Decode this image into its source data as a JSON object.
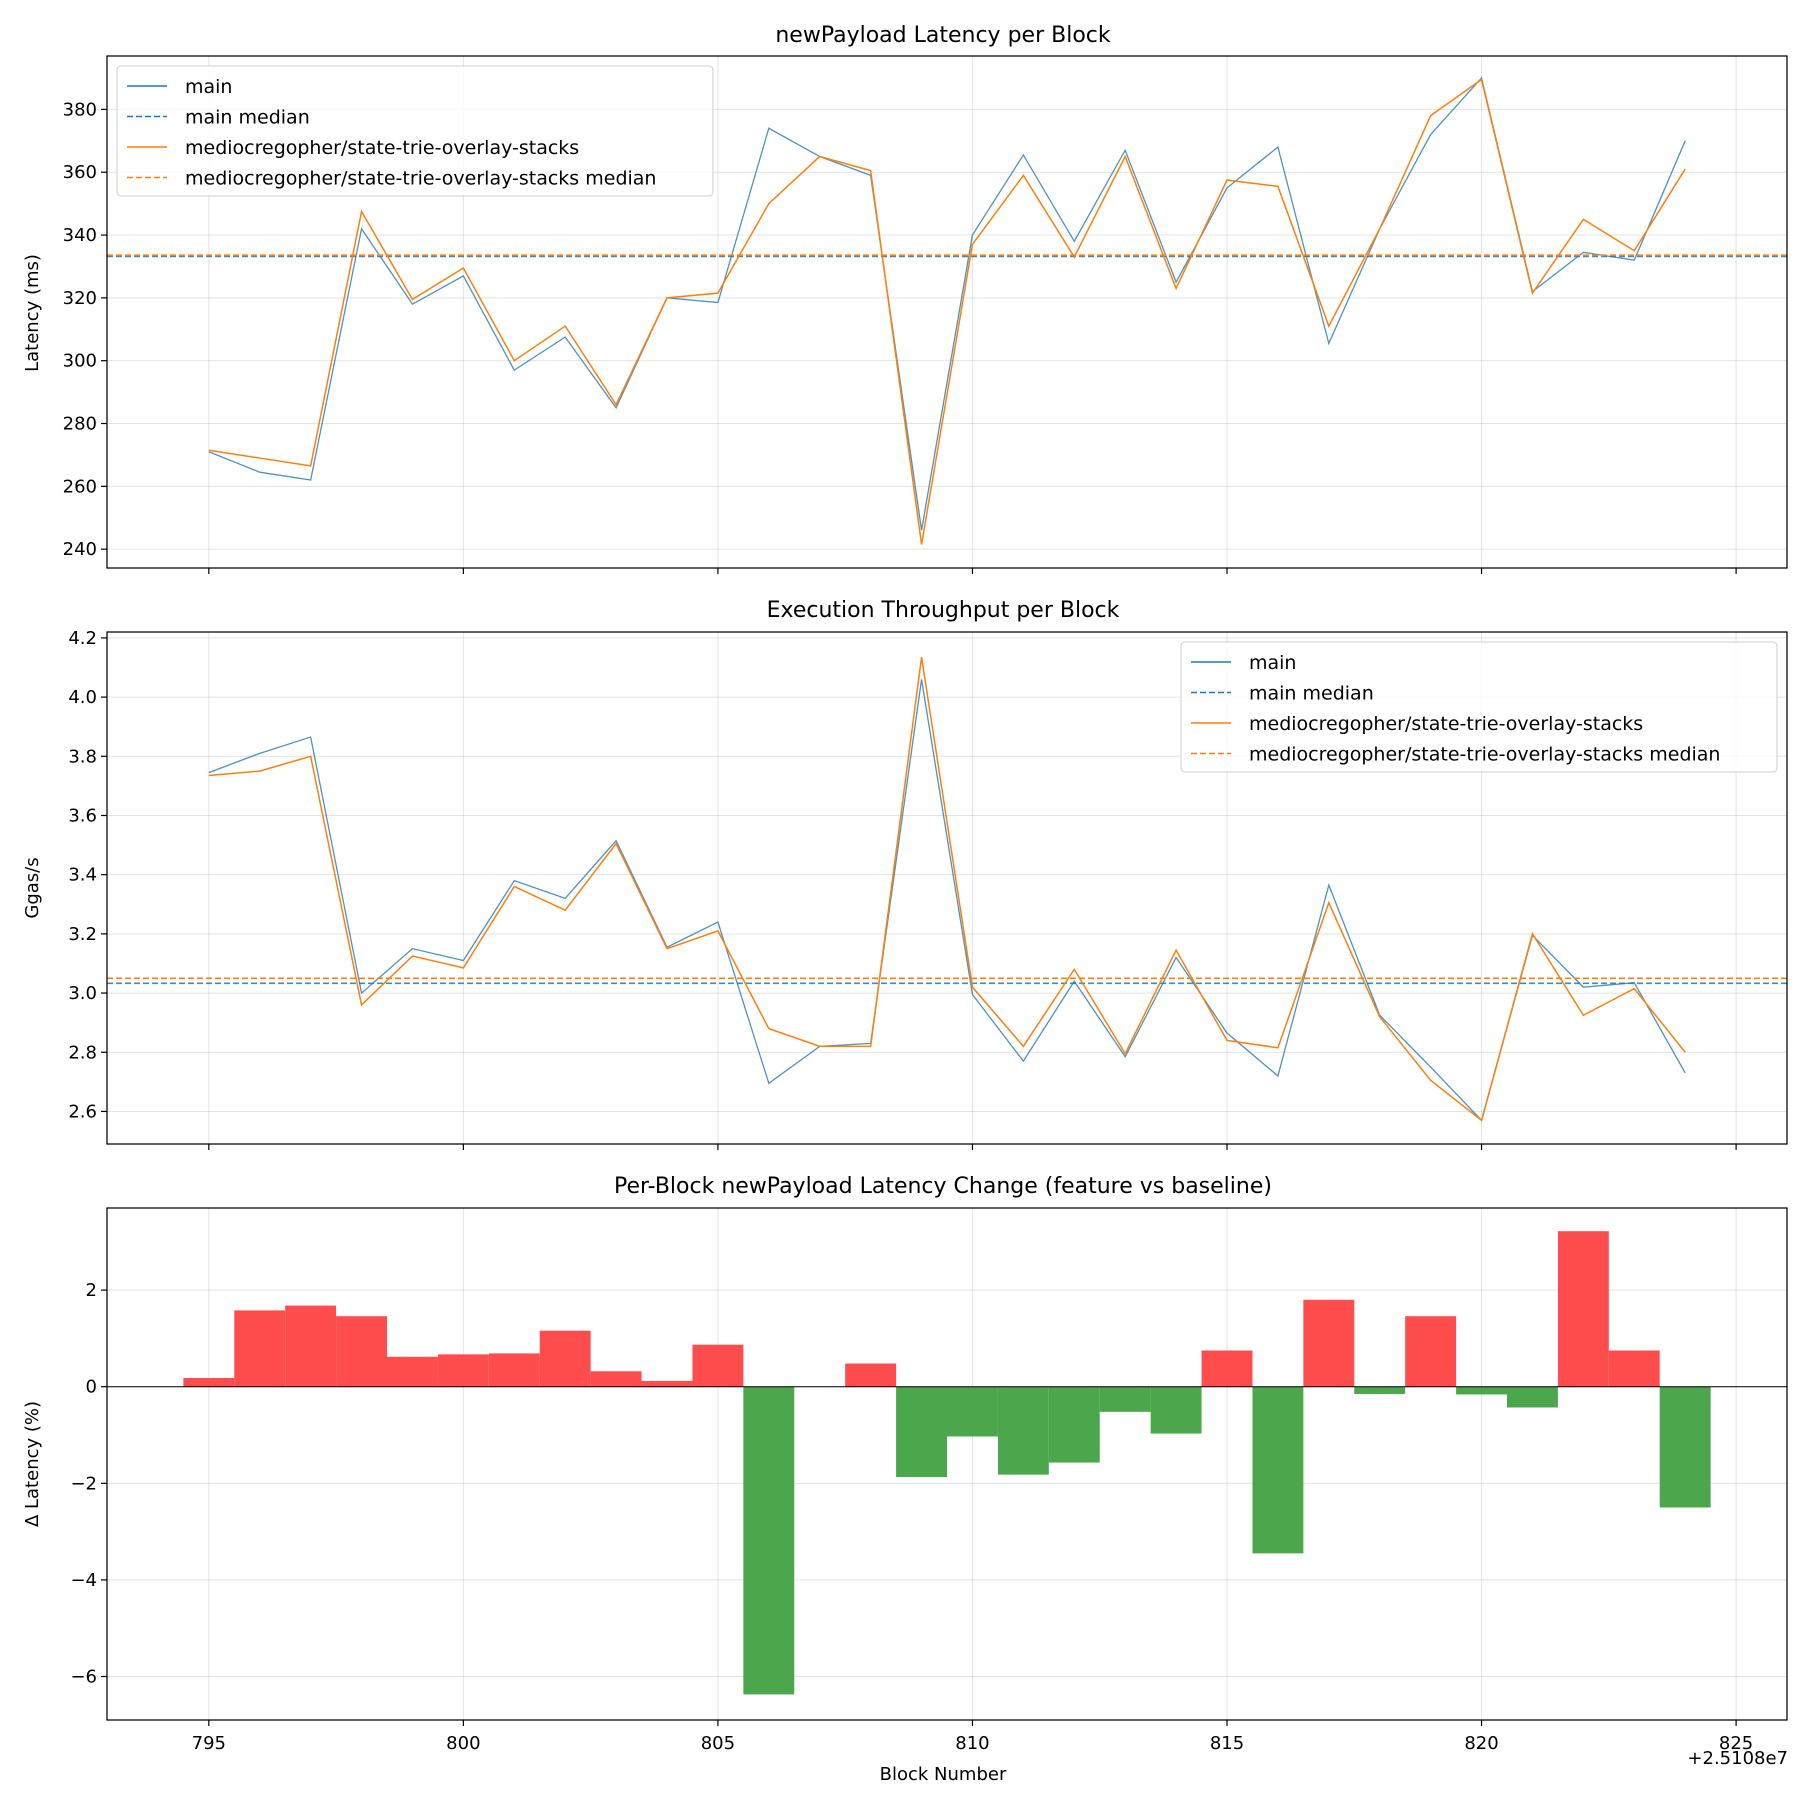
{
  "chart_data": [
    {
      "type": "line",
      "title": "newPayload Latency per Block",
      "xlabel": "",
      "ylabel": "Latency (ms)",
      "xlim": [
        793,
        826
      ],
      "ylim": [
        234,
        397
      ],
      "xticks": [
        795,
        800,
        805,
        810,
        815,
        820,
        825
      ],
      "yticks": [
        240,
        260,
        280,
        300,
        320,
        340,
        360,
        380
      ],
      "x": [
        795,
        796,
        797,
        798,
        799,
        800,
        801,
        802,
        803,
        804,
        805,
        806,
        807,
        808,
        809,
        810,
        811,
        812,
        813,
        814,
        815,
        816,
        817,
        818,
        819,
        820,
        821,
        822,
        823,
        824
      ],
      "series": [
        {
          "name": "main",
          "color": "#1f77b4",
          "style": "solid",
          "values": [
            271,
            264.5,
            262,
            342,
            318,
            327,
            297,
            307.5,
            285,
            320,
            318.5,
            374,
            365,
            359,
            246,
            340,
            365.5,
            338,
            367,
            325,
            355,
            368,
            305.5,
            342,
            372,
            390,
            322,
            334.5,
            332,
            370
          ]
        },
        {
          "name": "main median",
          "color": "#1f77b4",
          "style": "dashed",
          "value": 333.2
        },
        {
          "name": "mediocregopher/state-trie-overlay-stacks",
          "color": "#ff7f0e",
          "style": "solid",
          "values": [
            271.5,
            269,
            266.5,
            347.5,
            319.5,
            329.5,
            300,
            311,
            286,
            320,
            321.5,
            350,
            365,
            360.5,
            241.5,
            337,
            359,
            333,
            365,
            323,
            357.5,
            355.5,
            311,
            342,
            378,
            389.5,
            321.5,
            345,
            335,
            361
          ]
        },
        {
          "name": "mediocregopher/state-trie-overlay-stacks median",
          "color": "#ff7f0e",
          "style": "dashed",
          "value": 333.6
        }
      ],
      "legend": "upper left",
      "grid": true
    },
    {
      "type": "line",
      "title": "Execution Throughput per Block",
      "xlabel": "",
      "ylabel": "Ggas/s",
      "xlim": [
        793,
        826
      ],
      "ylim": [
        2.49,
        4.22
      ],
      "xticks": [
        795,
        800,
        805,
        810,
        815,
        820,
        825
      ],
      "yticks": [
        2.6,
        2.8,
        3.0,
        3.2,
        3.4,
        3.6,
        3.8,
        4.0,
        4.2
      ],
      "x": [
        795,
        796,
        797,
        798,
        799,
        800,
        801,
        802,
        803,
        804,
        805,
        806,
        807,
        808,
        809,
        810,
        811,
        812,
        813,
        814,
        815,
        816,
        817,
        818,
        819,
        820,
        821,
        822,
        823,
        824
      ],
      "series": [
        {
          "name": "main",
          "color": "#1f77b4",
          "style": "solid",
          "values": [
            3.745,
            3.81,
            3.865,
            3.0,
            3.15,
            3.11,
            3.38,
            3.32,
            3.515,
            3.155,
            3.24,
            2.695,
            2.82,
            2.83,
            4.06,
            2.995,
            2.77,
            3.04,
            2.785,
            3.12,
            2.865,
            2.72,
            3.365,
            2.925,
            2.75,
            2.57,
            3.195,
            3.02,
            3.035,
            2.73
          ]
        },
        {
          "name": "main median",
          "color": "#1f77b4",
          "style": "dashed",
          "value": 3.033
        },
        {
          "name": "mediocregopher/state-trie-overlay-stacks",
          "color": "#ff7f0e",
          "style": "solid",
          "values": [
            3.735,
            3.75,
            3.8,
            2.96,
            3.125,
            3.085,
            3.36,
            3.28,
            3.505,
            3.15,
            3.21,
            2.88,
            2.82,
            2.82,
            4.135,
            3.02,
            2.82,
            3.08,
            2.795,
            3.145,
            2.84,
            2.815,
            3.305,
            2.92,
            2.705,
            2.57,
            3.2,
            2.925,
            3.015,
            2.8
          ]
        },
        {
          "name": "mediocregopher/state-trie-overlay-stacks median",
          "color": "#ff7f0e",
          "style": "dashed",
          "value": 3.05
        }
      ],
      "legend": "upper right",
      "grid": true
    },
    {
      "type": "bar",
      "title": "Per-Block newPayload Latency Change (feature vs baseline)",
      "xlabel": "Block Number",
      "ylabel": "Δ Latency (%)",
      "offset_text": "+2.5108e7",
      "xlim": [
        793,
        826
      ],
      "ylim": [
        -6.9,
        3.7
      ],
      "xticks": [
        795,
        800,
        805,
        810,
        815,
        820,
        825
      ],
      "yticks": [
        -6,
        -4,
        -2,
        0,
        2
      ],
      "ytick_labels": [
        "−6",
        "−4",
        "−2",
        "0",
        "2"
      ],
      "x": [
        795,
        796,
        797,
        798,
        799,
        800,
        801,
        802,
        803,
        804,
        805,
        806,
        807,
        808,
        809,
        810,
        811,
        812,
        813,
        814,
        815,
        816,
        817,
        818,
        819,
        820,
        821,
        822,
        823,
        824
      ],
      "values": [
        0.18,
        1.58,
        1.68,
        1.46,
        0.62,
        0.67,
        0.69,
        1.16,
        0.32,
        0.12,
        0.87,
        -6.37,
        0.0,
        0.48,
        -1.87,
        -1.03,
        -1.82,
        -1.57,
        -0.52,
        -0.97,
        0.75,
        -3.45,
        1.8,
        -0.15,
        1.46,
        -0.16,
        -0.43,
        3.22,
        0.75,
        -2.5
      ],
      "positive_color": "#ff4d4d",
      "negative_color": "#4ca64c",
      "grid": true
    }
  ]
}
